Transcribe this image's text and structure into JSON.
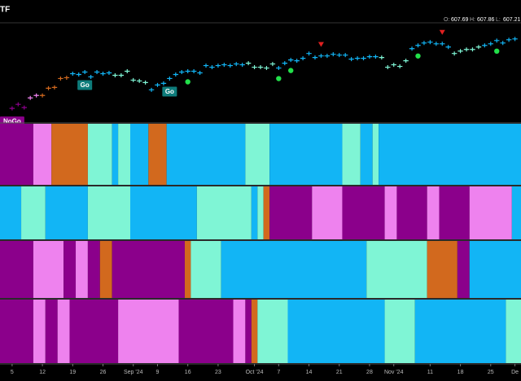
{
  "header": {
    "title": "TF",
    "ohlc": [
      {
        "label": "O:",
        "value": "607.69"
      },
      {
        "label": "H:",
        "value": "607.86"
      },
      {
        "label": "L:",
        "value": "607.21"
      }
    ]
  },
  "chart_data": {
    "type": "price-bars",
    "palette": {
      "b": "#12b5f5",
      "a": "#7ff5d5",
      "p": "#ee82ee",
      "m": "#8b008b",
      "o": "#d2691e"
    },
    "values": [
      517,
      522,
      518,
      530,
      533,
      533,
      542,
      543,
      554,
      555,
      560,
      559,
      562,
      556,
      562,
      560,
      561,
      558,
      558,
      563,
      552,
      551,
      549,
      540,
      546,
      548,
      554,
      559,
      562,
      563,
      563,
      561,
      570,
      568,
      570,
      571,
      570,
      572,
      571,
      573,
      568,
      568,
      567,
      572,
      567,
      573,
      577,
      576,
      579,
      585,
      580,
      582,
      582,
      584,
      583,
      583,
      578,
      579,
      579,
      581,
      581,
      580,
      568,
      571,
      569,
      576,
      591,
      595,
      598,
      599,
      597,
      597,
      593,
      585,
      588,
      590,
      590,
      593,
      595,
      597,
      601,
      598,
      602,
      603
    ],
    "ylim": [
      500,
      623
    ],
    "xlim": [
      -2,
      84
    ],
    "xticks": [
      {
        "value": 0,
        "label": "5"
      },
      {
        "value": 5,
        "label": "12"
      },
      {
        "value": 10,
        "label": "19"
      },
      {
        "value": 15,
        "label": "26"
      },
      {
        "value": 20,
        "label": "Sep '24"
      },
      {
        "value": 24,
        "label": "9"
      },
      {
        "value": 29,
        "label": "16"
      },
      {
        "value": 34,
        "label": "23"
      },
      {
        "value": 40,
        "label": "Oct '24"
      },
      {
        "value": 44,
        "label": "7"
      },
      {
        "value": 49,
        "label": "14"
      },
      {
        "value": 54,
        "label": "21"
      },
      {
        "value": 59,
        "label": "28"
      },
      {
        "value": 63,
        "label": "Nov '24"
      },
      {
        "value": 69,
        "label": "11"
      },
      {
        "value": 74,
        "label": "18"
      },
      {
        "value": 79,
        "label": "25"
      },
      {
        "value": 83,
        "label": "De"
      }
    ],
    "regimes": [
      {
        "color": "m",
        "start": 0,
        "end": 2
      },
      {
        "color": "p",
        "start": 3,
        "end": 4
      },
      {
        "color": "o",
        "start": 5,
        "end": 9
      },
      {
        "color": "b",
        "start": 10,
        "end": 16
      },
      {
        "color": "a",
        "start": 17,
        "end": 22
      },
      {
        "color": "b",
        "start": 23,
        "end": 38
      },
      {
        "color": "a",
        "start": 39,
        "end": 43
      },
      {
        "color": "b",
        "start": 44,
        "end": 60
      },
      {
        "color": "a",
        "start": 61,
        "end": 65
      },
      {
        "color": "b",
        "start": 66,
        "end": 72
      },
      {
        "color": "a",
        "start": 73,
        "end": 77
      },
      {
        "color": "b",
        "start": 78,
        "end": 83
      }
    ],
    "annotations": [
      {
        "text": "NoGo",
        "at": 0,
        "color": "#8b008b"
      },
      {
        "text": "Go",
        "at": 12,
        "color": "#0e7c7b"
      },
      {
        "text": "Go",
        "at": 26,
        "color": "#0e7c7b"
      }
    ],
    "signals": [
      {
        "kind": "dot",
        "at": 29
      },
      {
        "kind": "dot",
        "at": 44
      },
      {
        "kind": "dot",
        "at": 46
      },
      {
        "kind": "dot",
        "at": 67
      },
      {
        "kind": "dot",
        "at": 80
      },
      {
        "kind": "triangle",
        "at": 51
      },
      {
        "kind": "triangle",
        "at": 71
      }
    ],
    "panels": [
      {
        "segments": [
          {
            "color": "m",
            "start": 0,
            "end": 3
          },
          {
            "color": "p",
            "start": 4,
            "end": 6
          },
          {
            "color": "o",
            "start": 7,
            "end": 12
          },
          {
            "color": "a",
            "start": 13,
            "end": 16
          },
          {
            "color": "b",
            "start": 17,
            "end": 17
          },
          {
            "color": "a",
            "start": 18,
            "end": 19
          },
          {
            "color": "b",
            "start": 20,
            "end": 22
          },
          {
            "color": "o",
            "start": 23,
            "end": 25
          },
          {
            "color": "b",
            "start": 26,
            "end": 38
          },
          {
            "color": "a",
            "start": 39,
            "end": 42
          },
          {
            "color": "b",
            "start": 43,
            "end": 54
          },
          {
            "color": "a",
            "start": 55,
            "end": 57
          },
          {
            "color": "b",
            "start": 58,
            "end": 59
          },
          {
            "color": "a",
            "start": 60,
            "end": 60
          },
          {
            "color": "b",
            "start": 61,
            "end": 83
          }
        ]
      },
      {
        "segments": [
          {
            "color": "b",
            "start": 0,
            "end": 1
          },
          {
            "color": "a",
            "start": 2,
            "end": 5
          },
          {
            "color": "b",
            "start": 6,
            "end": 12
          },
          {
            "color": "a",
            "start": 13,
            "end": 19
          },
          {
            "color": "b",
            "start": 20,
            "end": 30
          },
          {
            "color": "a",
            "start": 31,
            "end": 39
          },
          {
            "color": "b",
            "start": 40,
            "end": 40
          },
          {
            "color": "a",
            "start": 41,
            "end": 41
          },
          {
            "color": "o",
            "start": 42,
            "end": 42
          },
          {
            "color": "m",
            "start": 43,
            "end": 49
          },
          {
            "color": "p",
            "start": 50,
            "end": 54
          },
          {
            "color": "m",
            "start": 55,
            "end": 61
          },
          {
            "color": "p",
            "start": 62,
            "end": 63
          },
          {
            "color": "m",
            "start": 64,
            "end": 68
          },
          {
            "color": "p",
            "start": 69,
            "end": 70
          },
          {
            "color": "m",
            "start": 71,
            "end": 75
          },
          {
            "color": "p",
            "start": 76,
            "end": 82
          },
          {
            "color": "b",
            "start": 83,
            "end": 83
          }
        ]
      },
      {
        "segments": [
          {
            "color": "m",
            "start": 0,
            "end": 3
          },
          {
            "color": "p",
            "start": 4,
            "end": 8
          },
          {
            "color": "m",
            "start": 9,
            "end": 10
          },
          {
            "color": "p",
            "start": 11,
            "end": 12
          },
          {
            "color": "m",
            "start": 13,
            "end": 14
          },
          {
            "color": "o",
            "start": 15,
            "end": 16
          },
          {
            "color": "m",
            "start": 17,
            "end": 28
          },
          {
            "color": "o",
            "start": 29,
            "end": 29
          },
          {
            "color": "a",
            "start": 30,
            "end": 34
          },
          {
            "color": "b",
            "start": 35,
            "end": 58
          },
          {
            "color": "a",
            "start": 59,
            "end": 68
          },
          {
            "color": "o",
            "start": 69,
            "end": 73
          },
          {
            "color": "m",
            "start": 74,
            "end": 75
          },
          {
            "color": "b",
            "start": 76,
            "end": 83
          }
        ]
      },
      {
        "segments": [
          {
            "color": "m",
            "start": 0,
            "end": 3
          },
          {
            "color": "p",
            "start": 4,
            "end": 5
          },
          {
            "color": "m",
            "start": 6,
            "end": 7
          },
          {
            "color": "p",
            "start": 8,
            "end": 9
          },
          {
            "color": "m",
            "start": 10,
            "end": 17
          },
          {
            "color": "p",
            "start": 18,
            "end": 27
          },
          {
            "color": "m",
            "start": 28,
            "end": 36
          },
          {
            "color": "p",
            "start": 37,
            "end": 38
          },
          {
            "color": "m",
            "start": 39,
            "end": 39
          },
          {
            "color": "o",
            "start": 40,
            "end": 40
          },
          {
            "color": "a",
            "start": 41,
            "end": 45
          },
          {
            "color": "b",
            "start": 46,
            "end": 61
          },
          {
            "color": "a",
            "start": 62,
            "end": 66
          },
          {
            "color": "b",
            "start": 67,
            "end": 81
          },
          {
            "color": "a",
            "start": 82,
            "end": 83
          }
        ]
      }
    ]
  }
}
